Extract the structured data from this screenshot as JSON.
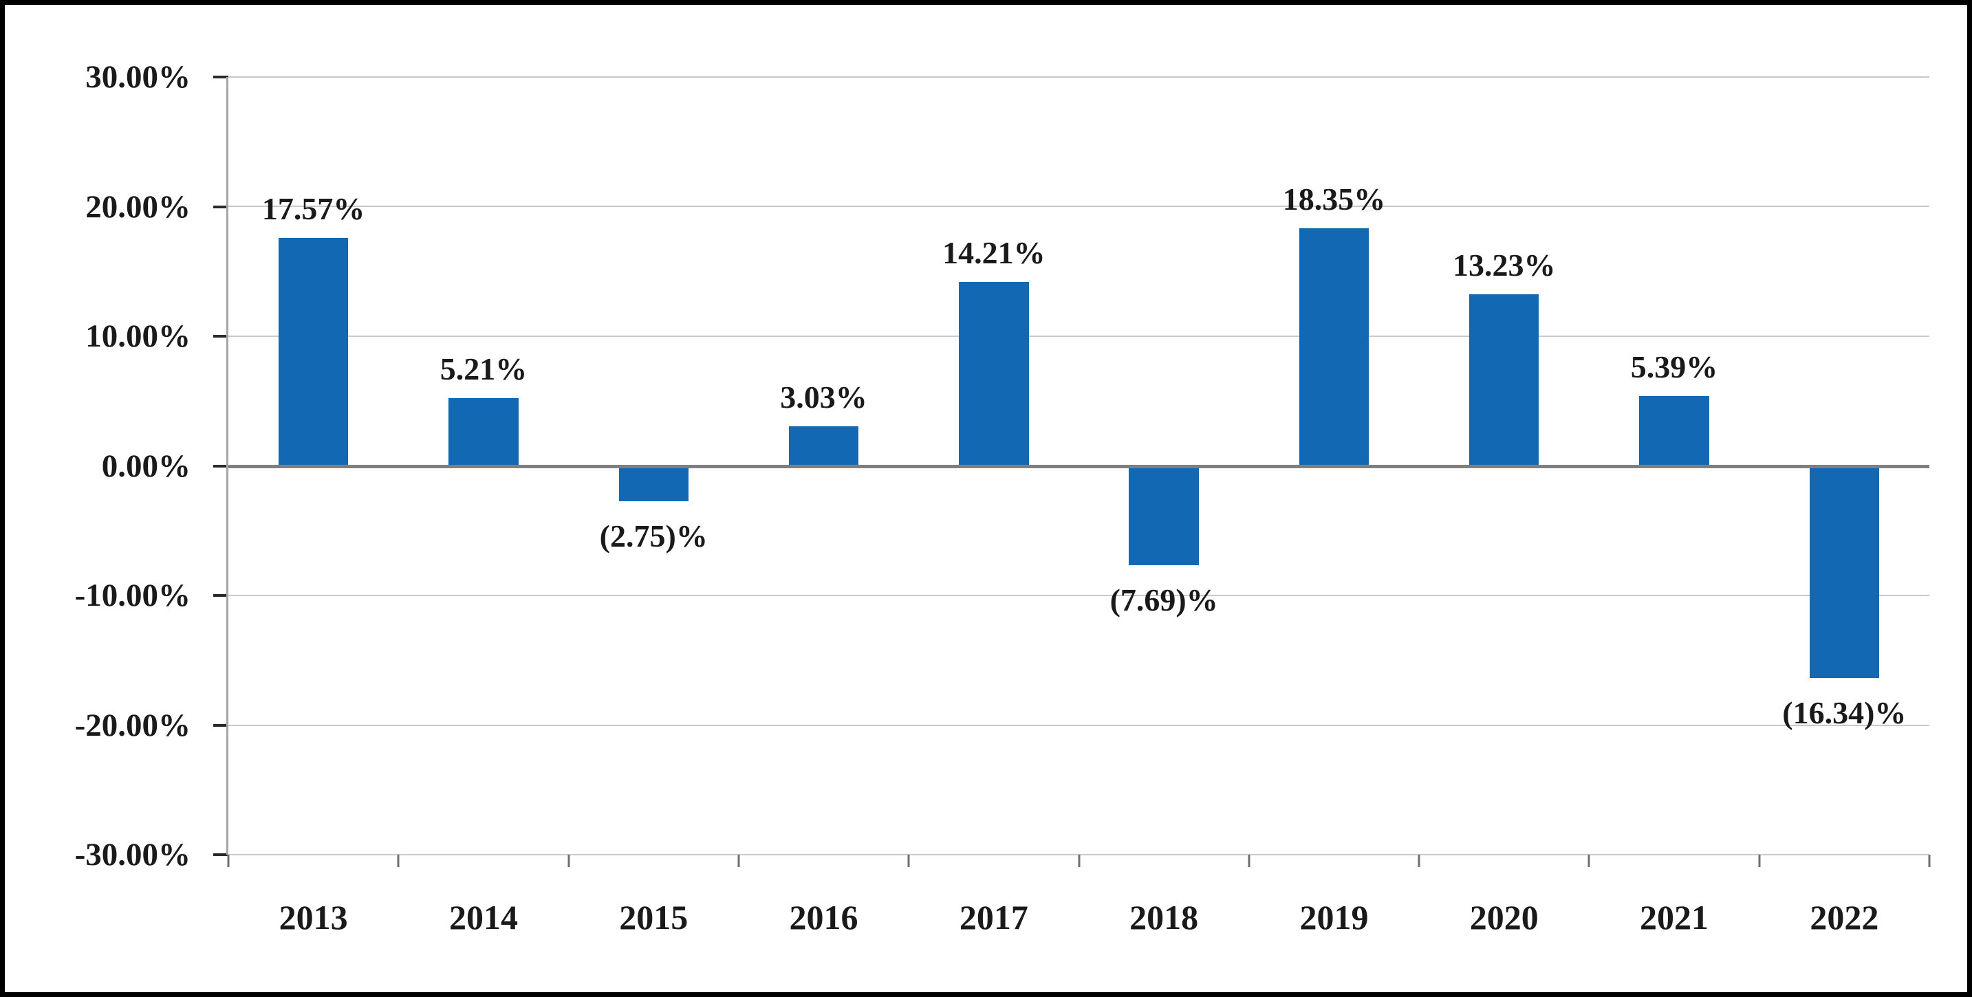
{
  "chart_data": {
    "type": "bar",
    "title": "",
    "xlabel": "",
    "ylabel": "",
    "categories": [
      "2013",
      "2014",
      "2015",
      "2016",
      "2017",
      "2018",
      "2019",
      "2020",
      "2021",
      "2022"
    ],
    "values": [
      17.57,
      5.21,
      -2.75,
      3.03,
      14.21,
      -7.69,
      18.35,
      13.23,
      5.39,
      -16.34
    ],
    "value_labels": [
      "17.57%",
      "5.21%",
      "(2.75)%",
      "3.03%",
      "14.21%",
      "(7.69)%",
      "18.35%",
      "13.23%",
      "5.39%",
      "(16.34)%"
    ],
    "y_ticks": [
      {
        "value": 30,
        "label": "30.00%"
      },
      {
        "value": 20,
        "label": "20.00%"
      },
      {
        "value": 10,
        "label": "10.00%"
      },
      {
        "value": 0,
        "label": "0.00%"
      },
      {
        "value": -10,
        "label": "-10.00%"
      },
      {
        "value": -20,
        "label": "-20.00%"
      },
      {
        "value": -30,
        "label": "-30.00%"
      }
    ],
    "ylim": [
      -30,
      30
    ],
    "grid": true,
    "legend": "none",
    "bar_color": "#1268b3",
    "gridline_color": "#c9c9c9",
    "zero_line_color": "#7f7f7f",
    "axis_line_color": "#a6a6a6",
    "frame_border_color": "#000000",
    "text_color": "#1a1a1a"
  }
}
